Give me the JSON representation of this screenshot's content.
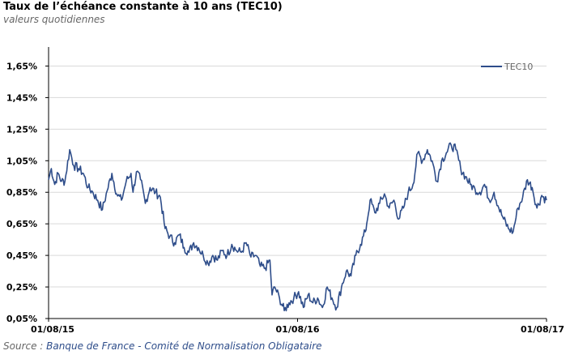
{
  "title": "Taux de l’échéance constante à 10 ans (TEC10)",
  "subtitle": "valeurs quotidiennes",
  "source": {
    "prefix": "Source : ",
    "org": "Banque de France - Comité de Normalisation Obligataire"
  },
  "colors": {
    "series": "#2e4d8a",
    "grid": "#d9d9d9",
    "axis": "#000000"
  },
  "chart_data": {
    "type": "line",
    "ylim": [
      0.05,
      1.75
    ],
    "y_ticks": [
      0.05,
      0.25,
      0.45,
      0.65,
      0.85,
      1.05,
      1.25,
      1.45,
      1.65
    ],
    "y_tick_labels": [
      "0,05%",
      "0,25%",
      "0,45%",
      "0,65%",
      "0,85%",
      "1,05%",
      "1,25%",
      "1,45%",
      "1,65%"
    ],
    "x_tick_labels": [
      "01/08/15",
      "01/08/16",
      "01/08/17"
    ],
    "grid": true,
    "legend_position": "top-right",
    "series": [
      {
        "name": "TEC10",
        "x": [
          "2015-08-01",
          "2015-08-05",
          "2015-08-10",
          "2015-08-15",
          "2015-08-20",
          "2015-08-25",
          "2015-09-01",
          "2015-09-07",
          "2015-09-14",
          "2015-09-21",
          "2015-09-28",
          "2015-10-05",
          "2015-10-12",
          "2015-10-19",
          "2015-10-26",
          "2015-11-02",
          "2015-11-09",
          "2015-11-16",
          "2015-11-23",
          "2015-11-30",
          "2015-12-03",
          "2015-12-08",
          "2015-12-14",
          "2015-12-21",
          "2015-12-28",
          "2016-01-05",
          "2016-01-12",
          "2016-01-19",
          "2016-01-26",
          "2016-02-02",
          "2016-02-09",
          "2016-02-16",
          "2016-02-23",
          "2016-03-01",
          "2016-03-08",
          "2016-03-15",
          "2016-03-22",
          "2016-03-29",
          "2016-04-05",
          "2016-04-12",
          "2016-04-19",
          "2016-04-26",
          "2016-05-03",
          "2016-05-10",
          "2016-05-17",
          "2016-05-24",
          "2016-05-31",
          "2016-06-07",
          "2016-06-14",
          "2016-06-21",
          "2016-06-24",
          "2016-06-28",
          "2016-07-05",
          "2016-07-12",
          "2016-07-19",
          "2016-07-26",
          "2016-08-02",
          "2016-08-09",
          "2016-08-16",
          "2016-08-23",
          "2016-08-30",
          "2016-09-06",
          "2016-09-13",
          "2016-09-20",
          "2016-09-27",
          "2016-10-04",
          "2016-10-11",
          "2016-10-18",
          "2016-10-25",
          "2016-11-01",
          "2016-11-08",
          "2016-11-10",
          "2016-11-15",
          "2016-11-22",
          "2016-11-29",
          "2016-12-06",
          "2016-12-13",
          "2016-12-20",
          "2016-12-27",
          "2017-01-03",
          "2017-01-10",
          "2017-01-17",
          "2017-01-24",
          "2017-01-31",
          "2017-02-07",
          "2017-02-14",
          "2017-02-21",
          "2017-02-28",
          "2017-03-07",
          "2017-03-14",
          "2017-03-21",
          "2017-03-28",
          "2017-04-04",
          "2017-04-11",
          "2017-04-18",
          "2017-04-25",
          "2017-05-02",
          "2017-05-09",
          "2017-05-16",
          "2017-05-23",
          "2017-05-30",
          "2017-06-06",
          "2017-06-13",
          "2017-06-20",
          "2017-06-27",
          "2017-07-04",
          "2017-07-11",
          "2017-07-18",
          "2017-07-25",
          "2017-08-01"
        ],
        "values": [
          0.93,
          1.0,
          0.9,
          0.97,
          0.92,
          0.92,
          1.12,
          1.02,
          1.0,
          0.97,
          0.88,
          0.85,
          0.8,
          0.74,
          0.86,
          0.97,
          0.84,
          0.8,
          0.92,
          0.97,
          0.85,
          0.98,
          0.93,
          0.78,
          0.88,
          0.85,
          0.82,
          0.62,
          0.57,
          0.53,
          0.58,
          0.5,
          0.47,
          0.53,
          0.5,
          0.45,
          0.4,
          0.45,
          0.42,
          0.48,
          0.45,
          0.52,
          0.48,
          0.47,
          0.53,
          0.44,
          0.45,
          0.38,
          0.37,
          0.42,
          0.2,
          0.25,
          0.18,
          0.1,
          0.15,
          0.18,
          0.22,
          0.12,
          0.2,
          0.15,
          0.18,
          0.12,
          0.25,
          0.18,
          0.12,
          0.25,
          0.35,
          0.32,
          0.45,
          0.52,
          0.6,
          0.65,
          0.8,
          0.72,
          0.78,
          0.84,
          0.75,
          0.8,
          0.68,
          0.75,
          0.85,
          0.9,
          1.1,
          1.05,
          1.12,
          1.05,
          0.92,
          1.05,
          1.1,
          1.15,
          1.12,
          1.0,
          0.95,
          0.9,
          0.87,
          0.85,
          0.9,
          0.8,
          0.85,
          0.75,
          0.68,
          0.62,
          0.6,
          0.75,
          0.82,
          0.93,
          0.88,
          0.75,
          0.83,
          0.8
        ]
      }
    ]
  }
}
